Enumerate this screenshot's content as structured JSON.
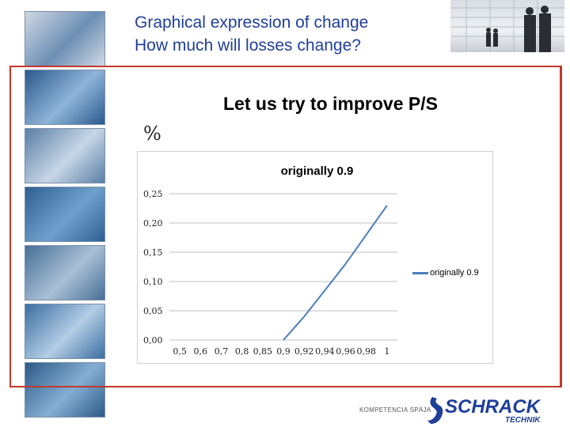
{
  "header": {
    "title_line1": "Graphical expression of change",
    "title_line2": "How much will losses change?"
  },
  "slide": {
    "subtitle": "Let us try to improve P/S",
    "unit_symbol": "%"
  },
  "footer": {
    "tagline": "KOMPETENCIA SPÁJA",
    "logo_word": "SCHRACK",
    "logo_subword": "TECHNIK"
  },
  "colors": {
    "title": "#1f3f9a",
    "frame": "#c0392b",
    "series": "#4a7ebb",
    "logo": "#1f3f9a"
  },
  "thumbnails": [
    {
      "icon": "circuit-breaker-photo-icon"
    },
    {
      "icon": "cable-bundle-photo-icon"
    },
    {
      "icon": "intercom-device-photo-icon"
    },
    {
      "icon": "exit-sign-photo-icon"
    },
    {
      "icon": "network-patch-panel-photo-icon"
    },
    {
      "icon": "fiber-optic-cable-photo-icon"
    },
    {
      "icon": "light-fixture-photo-icon"
    }
  ],
  "chart_data": {
    "type": "line",
    "title": "originally 0.9",
    "categories": [
      "0,5",
      "0,6",
      "0,7",
      "0,8",
      "0,85",
      "0,9",
      "0,92",
      "0,94",
      "0,96",
      "0,98",
      "1"
    ],
    "y_ticks": [
      "0,25",
      "0,20",
      "0,15",
      "0,10",
      "0,05",
      "0,00"
    ],
    "ylim": [
      0,
      0.25
    ],
    "grid": true,
    "legend_position": "right",
    "series": [
      {
        "name": "originally 0.9",
        "values": [
          null,
          null,
          null,
          null,
          null,
          0.0,
          0.04,
          0.085,
          0.13,
          0.18,
          0.23
        ]
      }
    ]
  }
}
